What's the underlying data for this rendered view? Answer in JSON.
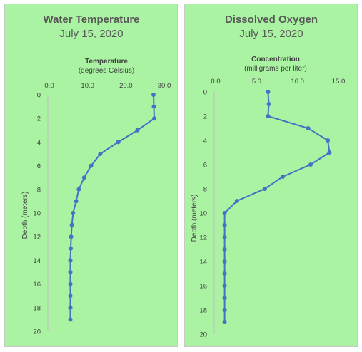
{
  "chart_data": [
    {
      "type": "line",
      "title": "Water Temperature",
      "subtitle": "July 15, 2020",
      "xlabel": "Temperature",
      "xlabel_sub": "(degrees Celsius)",
      "ylabel": "Depth (meters)",
      "xlim": [
        0,
        30
      ],
      "ylim": [
        0,
        20
      ],
      "y_inverted": true,
      "x_axis_position": "top",
      "x_ticks": [
        "0.0",
        "10.0",
        "20.0",
        "30.0"
      ],
      "y_ticks": [
        "0",
        "2",
        "4",
        "6",
        "8",
        "10",
        "12",
        "14",
        "16",
        "18",
        "20"
      ],
      "grid": false,
      "series": [
        {
          "x": [
            27.2,
            27.3,
            27.4,
            23.0,
            18.0,
            13.3,
            10.9,
            9.1,
            7.7,
            7.0,
            6.2,
            5.9,
            5.7,
            5.6,
            5.5,
            5.5,
            5.5,
            5.5,
            5.5,
            5.5
          ],
          "y": [
            0,
            1,
            2,
            3,
            4,
            5,
            6,
            7,
            8,
            9,
            10,
            11,
            12,
            13,
            14,
            15,
            16,
            17,
            18,
            19
          ]
        }
      ]
    },
    {
      "type": "line",
      "title": "Dissolved Oxygen",
      "subtitle": "July 15, 2020",
      "xlabel": "Concentration",
      "xlabel_sub": "(milligrams per liter)",
      "ylabel": "Depth (meters)",
      "xlim": [
        0,
        15
      ],
      "ylim": [
        0,
        20
      ],
      "y_inverted": true,
      "x_axis_position": "top",
      "x_ticks": [
        "0.0",
        "5.0",
        "10.0",
        "15.0"
      ],
      "y_ticks": [
        "0",
        "2",
        "4",
        "6",
        "8",
        "10",
        "12",
        "14",
        "16",
        "18",
        "20"
      ],
      "grid": false,
      "series": [
        {
          "x": [
            6.4,
            6.5,
            6.4,
            11.3,
            13.7,
            13.9,
            11.6,
            8.2,
            6.0,
            2.6,
            1.1,
            1.1,
            1.1,
            1.1,
            1.1,
            1.1,
            1.1,
            1.1,
            1.1,
            1.1
          ],
          "y": [
            0,
            1,
            2,
            3,
            4,
            5,
            6,
            7,
            8,
            9,
            10,
            11,
            12,
            13,
            14,
            15,
            16,
            17,
            18,
            19
          ]
        }
      ]
    }
  ]
}
